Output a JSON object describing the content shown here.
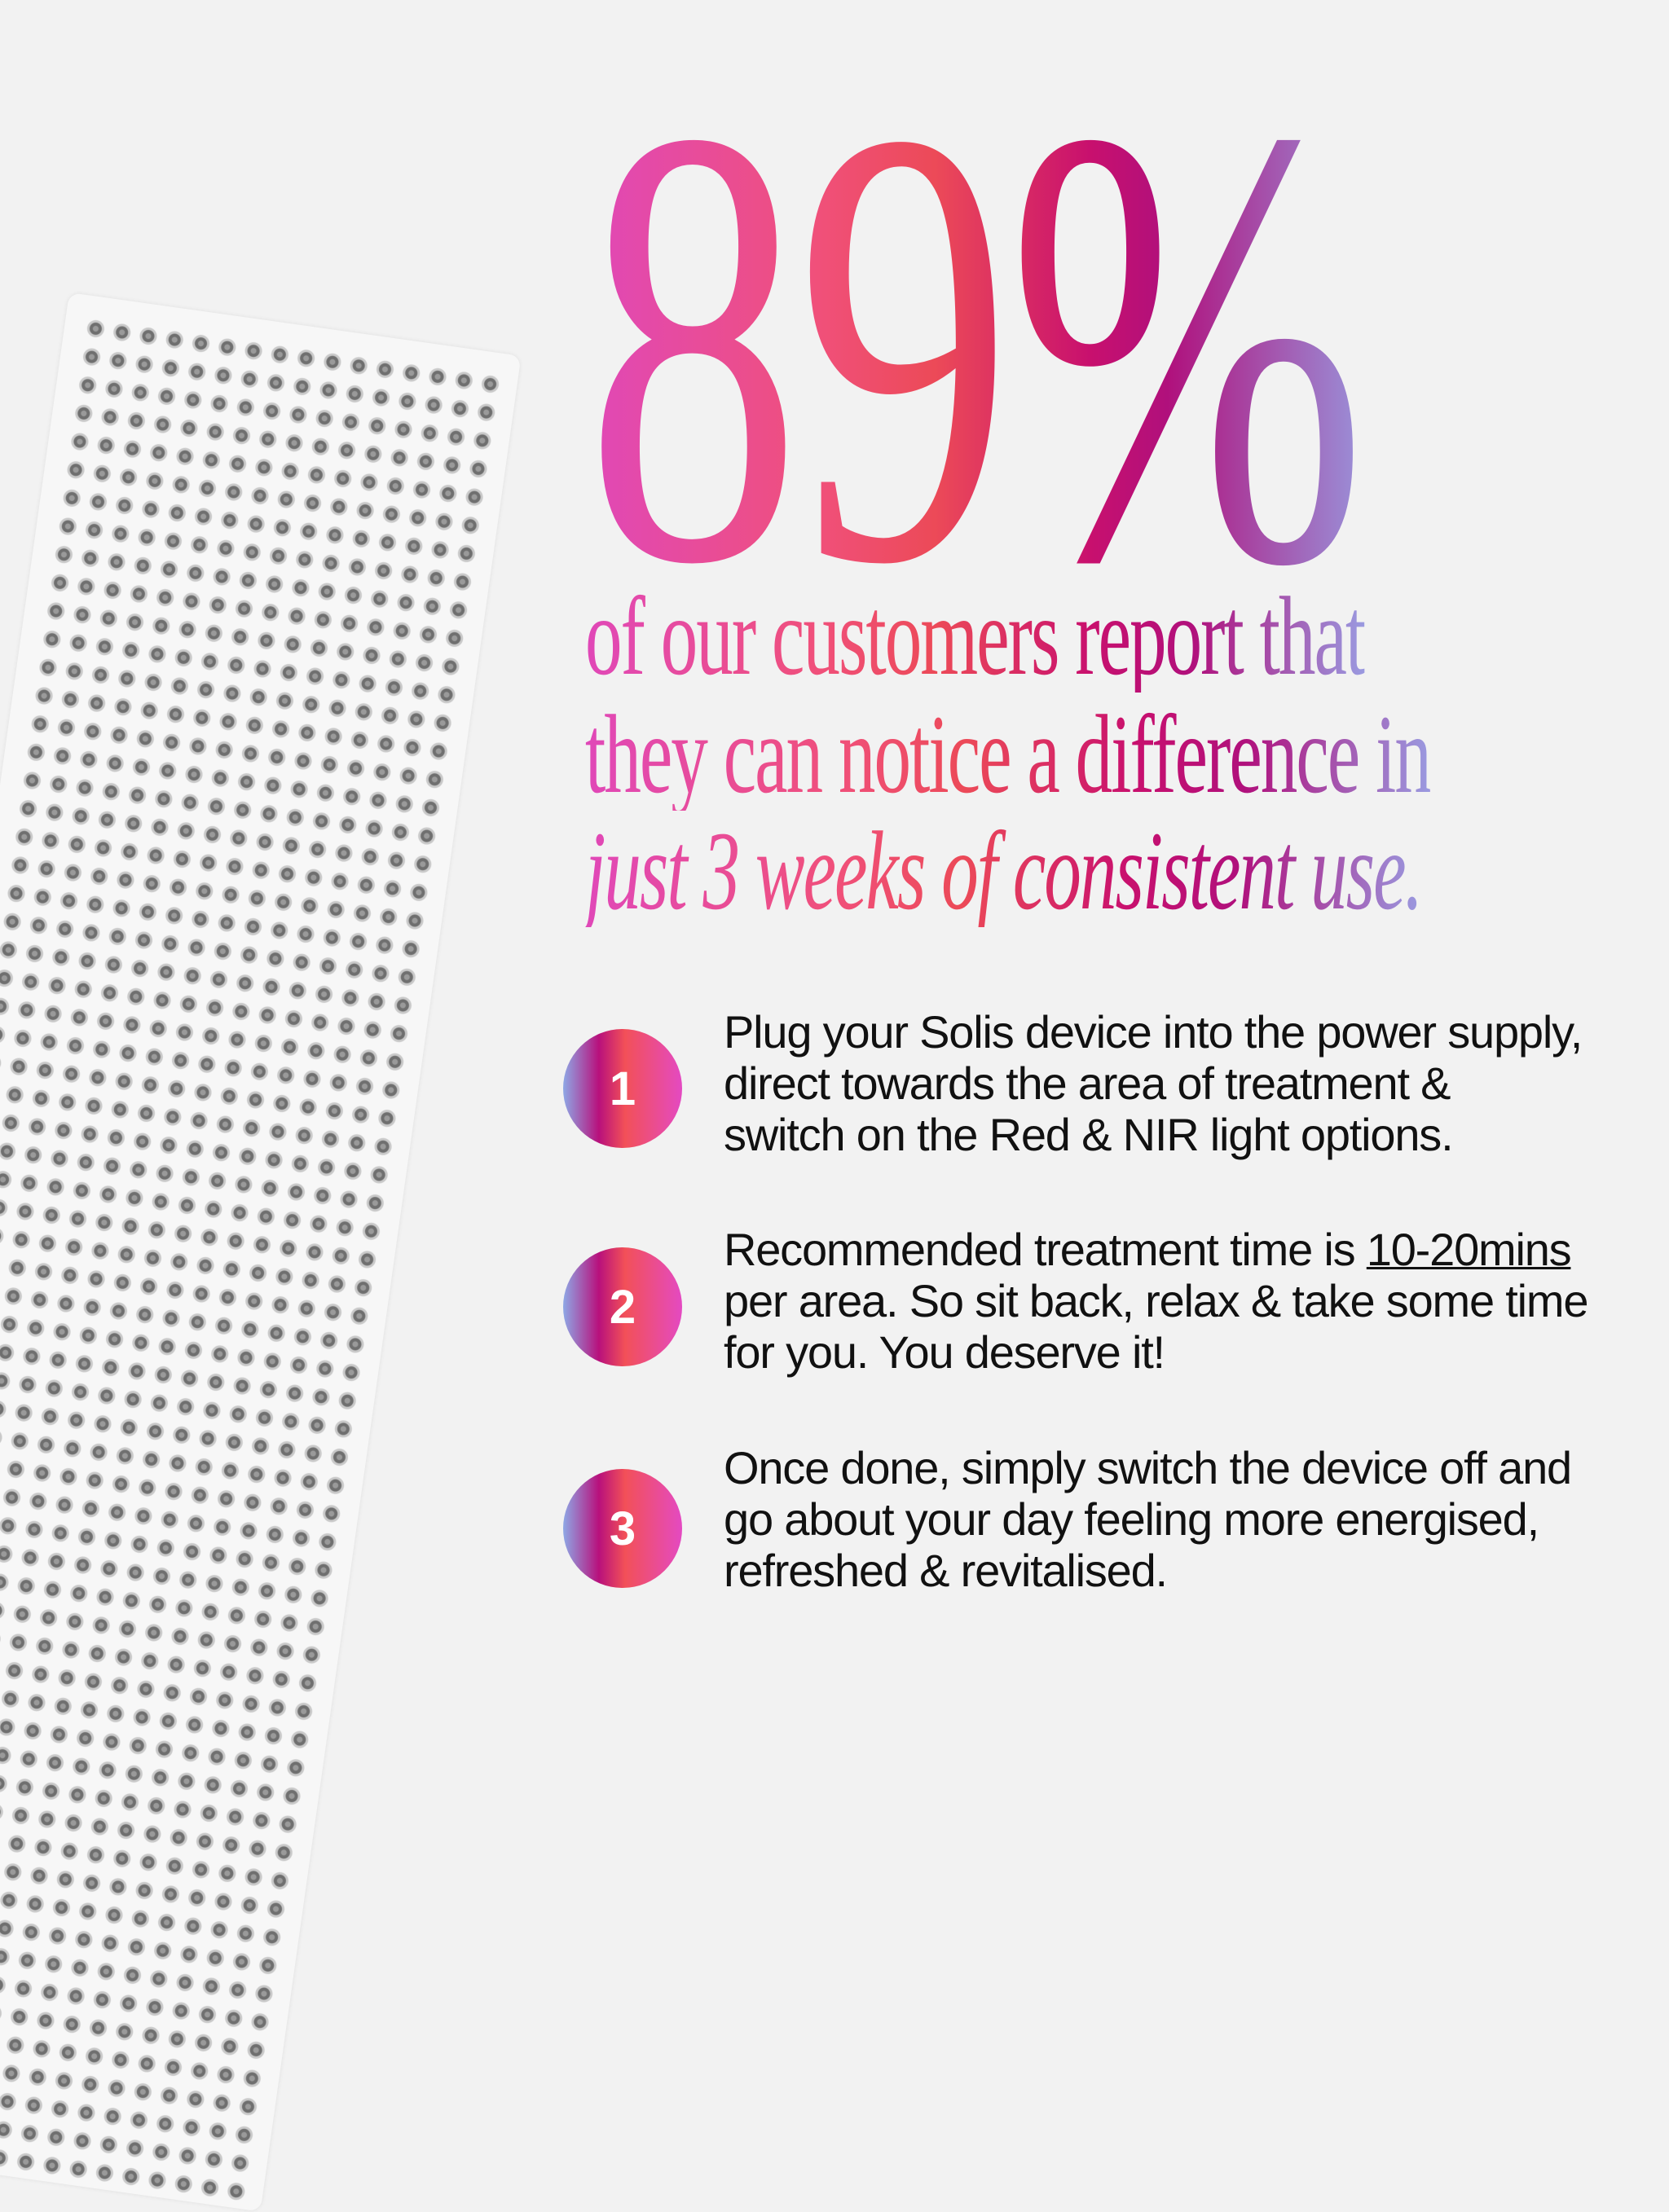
{
  "headline": {
    "stat": "89%",
    "line1": "of our customers report that",
    "line2": "they can notice a difference in",
    "line3": "just 3 weeks of consistent use."
  },
  "steps": [
    {
      "number": "1",
      "lines": [
        "Plug your Solis device into the power supply,",
        "direct towards the area of treatment &",
        "switch on the Red & NIR light options."
      ]
    },
    {
      "number": "2",
      "line1_pre": "Recommended treatment time is ",
      "line1_underlined": "10-20mins",
      "lines": [
        "per area. So sit back, relax & take some time",
        "for you. You deserve it!"
      ]
    },
    {
      "number": "3",
      "lines": [
        "Once done, simply switch the device off and",
        "go about your day feeling more energised,",
        "refreshed & revitalised."
      ]
    }
  ],
  "colors": {
    "gradient": [
      "#e048b8",
      "#f0507a",
      "#c8106e",
      "#9a9ae0"
    ],
    "background": "#f2f2f2"
  },
  "image": {
    "name": "led-light-therapy-panel"
  }
}
